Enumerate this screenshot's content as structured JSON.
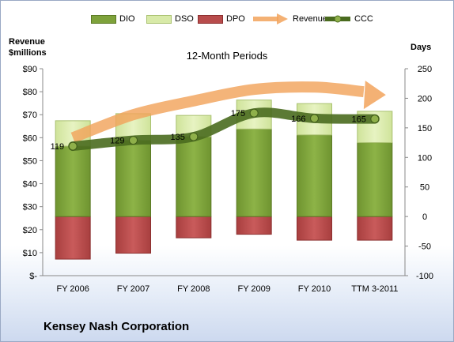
{
  "chart_data": {
    "type": "bar",
    "title": "12-Month Periods",
    "company": "Kensey Nash Corporation",
    "ylabel_left": [
      "Revenue",
      "$millions"
    ],
    "ylabel_right": "Days",
    "legend": [
      "DIO",
      "DSO",
      "DPO",
      "Revenue",
      "CCC"
    ],
    "categories": [
      "FY 2006",
      "FY 2007",
      "FY 2008",
      "FY 2009",
      "FY 2010",
      "TTM 3-2011"
    ],
    "left_axis": {
      "min": 0,
      "max": 90,
      "step": 10,
      "ticks": [
        "$-",
        "$10",
        "$20",
        "$30",
        "$40",
        "$50",
        "$60",
        "$70",
        "$80",
        "$90"
      ]
    },
    "right_axis": {
      "min": -100,
      "max": 250,
      "step": 50,
      "ticks": [
        "-100",
        "-50",
        "0",
        "50",
        "100",
        "150",
        "200",
        "250"
      ]
    },
    "series": [
      {
        "name": "DIO",
        "axis": "right",
        "values": [
          119,
          129,
          135,
          148,
          138,
          125
        ]
      },
      {
        "name": "DSO",
        "axis": "right",
        "values": [
          43,
          45,
          36,
          49,
          53,
          53
        ]
      },
      {
        "name": "DPO",
        "axis": "right",
        "values": [
          -72,
          -62,
          -36,
          -30,
          -40,
          -40
        ]
      },
      {
        "name": "Revenue",
        "axis": "left",
        "values": [
          60,
          70,
          76,
          81,
          82,
          80
        ]
      },
      {
        "name": "CCC",
        "axis": "right",
        "values": [
          119,
          129,
          135,
          175,
          166,
          165
        ]
      }
    ],
    "ccc_labels": [
      "119",
      "129",
      "135",
      "175",
      "166",
      "165"
    ],
    "colors": {
      "dio": "#7ea23b",
      "dso": "#d8eaa8",
      "dpo": "#b84c4c",
      "revenue": "#f2a35c",
      "ccc": "#4a6b1f"
    }
  }
}
